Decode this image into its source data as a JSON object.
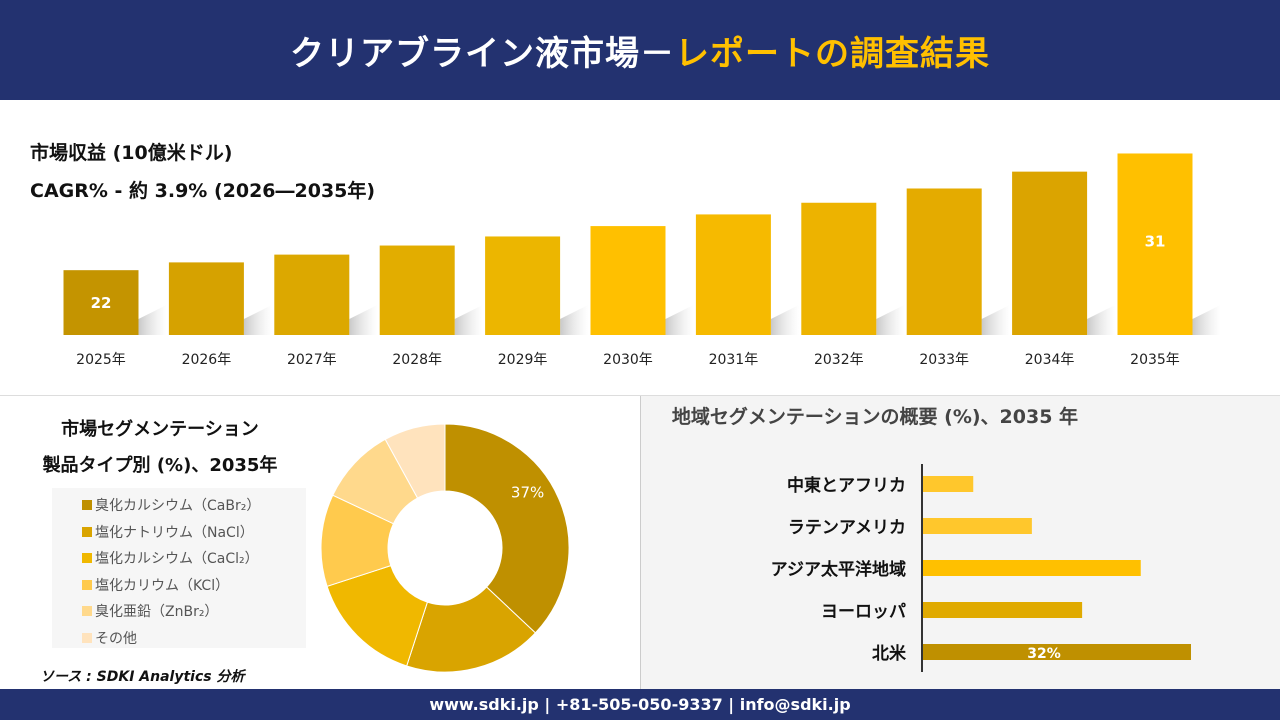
{
  "header": {
    "title_white": "クリアブライン液市場－",
    "title_yellow": "レポートの調査結果"
  },
  "colors": {
    "header_bg": "#233270",
    "accent": "#FFC000"
  },
  "chart_data": [
    {
      "type": "bar",
      "title": "市場収益 (10億米ドル)",
      "subtitle": "CAGR% - 約 3.9% (2026―2035年)",
      "categories": [
        "2025年",
        "2026年",
        "2027年",
        "2028年",
        "2029年",
        "2030年",
        "2031年",
        "2032年",
        "2033年",
        "2034年",
        "2035年"
      ],
      "values": [
        22,
        22.6,
        23.2,
        23.9,
        24.6,
        25.4,
        26.3,
        27.2,
        28.3,
        29.6,
        31
      ],
      "data_labels": {
        "0": "22",
        "10": "31"
      },
      "colors": [
        "#C49400",
        "#D6A200",
        "#DCA800",
        "#E2AD00",
        "#ECB600",
        "#FFC000",
        "#F6BA00",
        "#EDB300",
        "#E4AB00",
        "#DBA400",
        "#FFC000"
      ],
      "ylim": [
        17,
        31.5
      ],
      "grid": false
    },
    {
      "type": "pie",
      "title": "市場セグメンテーション",
      "subtitle": "製品タイプ別 (%)、2035年",
      "labels": [
        "臭化カルシウム（CaBr₂）",
        "塩化ナトリウム（NaCl）",
        "塩化カルシウム（CaCl₂）",
        "塩化カリウム（KCl）",
        "臭化亜鉛（ZnBr₂）",
        "その他"
      ],
      "values": [
        37,
        18,
        15,
        12,
        10,
        8
      ],
      "data_labels": {
        "0": "37%"
      },
      "colors": [
        "#BF9000",
        "#D9A400",
        "#F0B800",
        "#FFCA4D",
        "#FFD98C",
        "#FFE3BD"
      ],
      "legend": "left"
    },
    {
      "type": "bar",
      "orientation": "horizontal",
      "title": "地域セグメンテーションの概要 (%)、2035 年",
      "categories": [
        "中東とアフリカ",
        "ラテンアメリカ",
        "アジア太平洋地域",
        "ヨーロッパ",
        "北米"
      ],
      "values": [
        6,
        13,
        26,
        19,
        32
      ],
      "data_labels": {
        "4": "32%"
      },
      "colors": [
        "#FFC72C",
        "#FFC72C",
        "#FFC000",
        "#E0AA00",
        "#BF9000"
      ]
    }
  ],
  "source": "ソース : SDKI Analytics 分析",
  "footer": "www.sdki.jp | +81-505-050-9337 | info@sdki.jp"
}
